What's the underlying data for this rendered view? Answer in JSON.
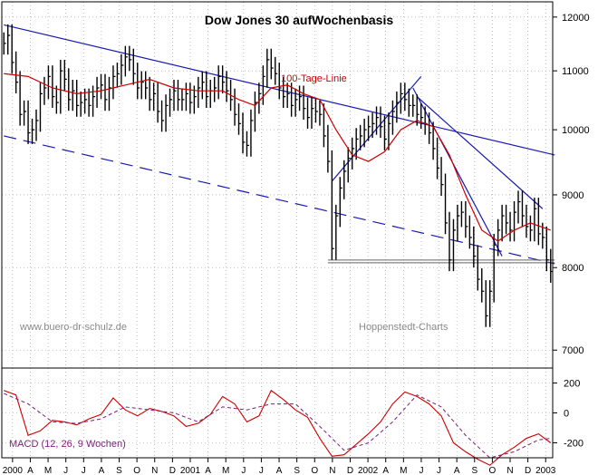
{
  "chart_data": {
    "type": "line",
    "title": "Dow Jones 30 aufWochenbasis",
    "annotations": {
      "ma_label": "100-Tage-Linie",
      "website": "www.buero-dr-schulz.de",
      "source": "Hoppenstedt-Charts",
      "macd_label": "MACD (12, 26, 9 Wochen)"
    },
    "price_axis": {
      "scale": "log",
      "ticks": [
        7000,
        8000,
        9000,
        10000,
        11000,
        12000
      ],
      "tick_labels": [
        "7000",
        "8000",
        "9000",
        "10000",
        "11000",
        "12000"
      ],
      "range": [
        6800,
        12300
      ]
    },
    "macd_axis": {
      "ticks": [
        200,
        0,
        -200
      ],
      "tick_labels": [
        "200",
        "0",
        "-200"
      ],
      "range": [
        -300,
        300
      ]
    },
    "x_axis": {
      "labels": [
        "2000",
        "A",
        "M",
        "J",
        "J",
        "A",
        "S",
        "O",
        "N",
        "D",
        "2001",
        "A",
        "M",
        "J",
        "J",
        "A",
        "S",
        "O",
        "N",
        "D",
        "2002",
        "A",
        "M",
        "J",
        "J",
        "A",
        "S",
        "O",
        "N",
        "D",
        "2003"
      ]
    },
    "series": [
      {
        "name": "Dow Jones 30",
        "points": [
          [
            0,
            11500
          ],
          [
            1,
            11650
          ],
          [
            2,
            11150
          ],
          [
            3,
            10800
          ],
          [
            4,
            10250
          ],
          [
            5,
            10300
          ],
          [
            6,
            9950
          ],
          [
            7,
            10000
          ],
          [
            8,
            10150
          ],
          [
            9,
            10600
          ],
          [
            10,
            10700
          ],
          [
            11,
            10900
          ],
          [
            12,
            10550
          ],
          [
            13,
            10450
          ],
          [
            14,
            11000
          ],
          [
            15,
            10850
          ],
          [
            16,
            10500
          ],
          [
            17,
            10650
          ],
          [
            18,
            10400
          ],
          [
            19,
            10450
          ],
          [
            20,
            10500
          ],
          [
            21,
            10400
          ],
          [
            22,
            10550
          ],
          [
            23,
            10700
          ],
          [
            24,
            10750
          ],
          [
            25,
            10500
          ],
          [
            26,
            10700
          ],
          [
            27,
            10900
          ],
          [
            28,
            10950
          ],
          [
            29,
            11100
          ],
          [
            30,
            11250
          ],
          [
            31,
            11200
          ],
          [
            32,
            10950
          ],
          [
            33,
            10700
          ],
          [
            34,
            10800
          ],
          [
            35,
            10700
          ],
          [
            36,
            10500
          ],
          [
            37,
            10600
          ],
          [
            38,
            10300
          ],
          [
            39,
            10150
          ],
          [
            40,
            10400
          ],
          [
            41,
            10500
          ],
          [
            42,
            10650
          ],
          [
            43,
            10500
          ],
          [
            44,
            10500
          ],
          [
            45,
            10600
          ],
          [
            46,
            10450
          ],
          [
            47,
            10550
          ],
          [
            48,
            10700
          ],
          [
            49,
            10800
          ],
          [
            50,
            10550
          ],
          [
            51,
            10650
          ],
          [
            52,
            10700
          ],
          [
            53,
            10900
          ],
          [
            54,
            10800
          ],
          [
            55,
            10650
          ],
          [
            56,
            10500
          ],
          [
            57,
            10250
          ],
          [
            58,
            10100
          ],
          [
            59,
            9800
          ],
          [
            60,
            9750
          ],
          [
            61,
            10150
          ],
          [
            62,
            10450
          ],
          [
            63,
            10600
          ],
          [
            64,
            10900
          ],
          [
            65,
            11200
          ],
          [
            66,
            11050
          ],
          [
            67,
            10950
          ],
          [
            68,
            10700
          ],
          [
            69,
            10550
          ],
          [
            70,
            10600
          ],
          [
            71,
            10400
          ],
          [
            72,
            10500
          ],
          [
            73,
            10550
          ],
          [
            74,
            10350
          ],
          [
            75,
            10200
          ],
          [
            76,
            10350
          ],
          [
            77,
            10300
          ],
          [
            78,
            10250
          ],
          [
            79,
            9900
          ],
          [
            80,
            9500
          ],
          [
            81,
            8250
          ],
          [
            82,
            8700
          ],
          [
            83,
            9100
          ],
          [
            84,
            9350
          ],
          [
            85,
            9550
          ],
          [
            86,
            9700
          ],
          [
            87,
            9850
          ],
          [
            88,
            9900
          ],
          [
            89,
            10000
          ],
          [
            90,
            10050
          ],
          [
            91,
            10100
          ],
          [
            92,
            10200
          ],
          [
            93,
            10050
          ],
          [
            94,
            9850
          ],
          [
            95,
            10100
          ],
          [
            96,
            10300
          ],
          [
            97,
            10450
          ],
          [
            98,
            10600
          ],
          [
            99,
            10500
          ],
          [
            100,
            10400
          ],
          [
            101,
            10400
          ],
          [
            102,
            10250
          ],
          [
            103,
            10200
          ],
          [
            104,
            10100
          ],
          [
            105,
            9950
          ],
          [
            106,
            9700
          ],
          [
            107,
            9400
          ],
          [
            108,
            9150
          ],
          [
            109,
            8600
          ],
          [
            110,
            8100
          ],
          [
            111,
            8500
          ],
          [
            112,
            8700
          ],
          [
            113,
            8750
          ],
          [
            114,
            8550
          ],
          [
            115,
            8400
          ],
          [
            116,
            8150
          ],
          [
            117,
            7850
          ],
          [
            118,
            7700
          ],
          [
            119,
            7400
          ],
          [
            120,
            7700
          ],
          [
            121,
            8300
          ],
          [
            122,
            8500
          ],
          [
            123,
            8700
          ],
          [
            124,
            8600
          ],
          [
            125,
            8500
          ],
          [
            126,
            8750
          ],
          [
            127,
            8900
          ],
          [
            128,
            8700
          ],
          [
            129,
            8550
          ],
          [
            130,
            8500
          ],
          [
            131,
            8800
          ],
          [
            132,
            8450
          ],
          [
            133,
            8400
          ],
          [
            134,
            8100
          ],
          [
            135,
            7950
          ]
        ]
      },
      {
        "name": "100-Tage-Linie",
        "points": [
          [
            0,
            10950
          ],
          [
            6,
            10900
          ],
          [
            12,
            10700
          ],
          [
            18,
            10600
          ],
          [
            24,
            10650
          ],
          [
            30,
            10750
          ],
          [
            36,
            10850
          ],
          [
            42,
            10700
          ],
          [
            48,
            10650
          ],
          [
            54,
            10650
          ],
          [
            58,
            10500
          ],
          [
            62,
            10400
          ],
          [
            66,
            10700
          ],
          [
            70,
            10750
          ],
          [
            74,
            10600
          ],
          [
            78,
            10500
          ],
          [
            82,
            10000
          ],
          [
            86,
            9600
          ],
          [
            90,
            9500
          ],
          [
            94,
            9650
          ],
          [
            98,
            10000
          ],
          [
            102,
            10150
          ],
          [
            106,
            10050
          ],
          [
            110,
            9600
          ],
          [
            114,
            9000
          ],
          [
            118,
            8500
          ],
          [
            122,
            8350
          ],
          [
            126,
            8500
          ],
          [
            130,
            8600
          ],
          [
            135,
            8500
          ]
        ]
      },
      {
        "name": "MACD",
        "points": [
          [
            0,
            150
          ],
          [
            3,
            120
          ],
          [
            6,
            -150
          ],
          [
            9,
            -120
          ],
          [
            12,
            -50
          ],
          [
            15,
            -60
          ],
          [
            18,
            -80
          ],
          [
            21,
            -40
          ],
          [
            24,
            -10
          ],
          [
            27,
            100
          ],
          [
            30,
            20
          ],
          [
            33,
            -20
          ],
          [
            36,
            30
          ],
          [
            39,
            10
          ],
          [
            42,
            -20
          ],
          [
            45,
            -90
          ],
          [
            48,
            -70
          ],
          [
            51,
            -10
          ],
          [
            54,
            110
          ],
          [
            57,
            60
          ],
          [
            60,
            -60
          ],
          [
            63,
            -20
          ],
          [
            66,
            150
          ],
          [
            69,
            90
          ],
          [
            72,
            20
          ],
          [
            75,
            -30
          ],
          [
            78,
            -170
          ],
          [
            81,
            -290
          ],
          [
            84,
            -280
          ],
          [
            87,
            -210
          ],
          [
            90,
            -140
          ],
          [
            93,
            -60
          ],
          [
            96,
            60
          ],
          [
            99,
            140
          ],
          [
            102,
            110
          ],
          [
            105,
            60
          ],
          [
            108,
            -20
          ],
          [
            111,
            -200
          ],
          [
            114,
            -260
          ],
          [
            117,
            -310
          ],
          [
            120,
            -350
          ],
          [
            123,
            -280
          ],
          [
            126,
            -230
          ],
          [
            129,
            -170
          ],
          [
            132,
            -140
          ],
          [
            135,
            -200
          ]
        ]
      },
      {
        "name": "Signal",
        "points": [
          [
            0,
            130
          ],
          [
            6,
            60
          ],
          [
            12,
            -60
          ],
          [
            18,
            -70
          ],
          [
            24,
            -40
          ],
          [
            30,
            40
          ],
          [
            36,
            20
          ],
          [
            42,
            0
          ],
          [
            48,
            -60
          ],
          [
            54,
            40
          ],
          [
            60,
            20
          ],
          [
            66,
            60
          ],
          [
            72,
            60
          ],
          [
            78,
            -90
          ],
          [
            84,
            -250
          ],
          [
            90,
            -200
          ],
          [
            96,
            -60
          ],
          [
            102,
            120
          ],
          [
            108,
            40
          ],
          [
            114,
            -150
          ],
          [
            120,
            -300
          ],
          [
            126,
            -260
          ],
          [
            132,
            -180
          ],
          [
            135,
            -170
          ]
        ]
      }
    ],
    "trendlines": [
      {
        "name": "upper-resistance",
        "from": [
          0,
          11850
        ],
        "to": [
          136,
          9600
        ],
        "style": "solid"
      },
      {
        "name": "lower-channel",
        "from": [
          0,
          9900
        ],
        "to": [
          136,
          8050
        ],
        "style": "dashed"
      },
      {
        "name": "rally-support",
        "from": [
          81,
          9200
        ],
        "to": [
          103,
          10900
        ],
        "style": "solid"
      },
      {
        "name": "decline-line-1",
        "from": [
          101,
          10700
        ],
        "to": [
          123,
          8150
        ],
        "style": "solid"
      },
      {
        "name": "decline-line-2",
        "from": [
          102,
          10550
        ],
        "to": [
          133,
          8800
        ],
        "style": "solid"
      },
      {
        "name": "support-8000",
        "from": [
          80,
          8080
        ],
        "to": [
          136,
          8080
        ],
        "style": "double"
      }
    ],
    "colors": {
      "price": "#000000",
      "ma": "#cc0000",
      "trend": "#1a1ab0",
      "macd": "#cc0000",
      "signal": "#7a1e7a",
      "grid": "#9a9a9a",
      "support": "#666666",
      "annotation": "#8a8a8a"
    }
  }
}
